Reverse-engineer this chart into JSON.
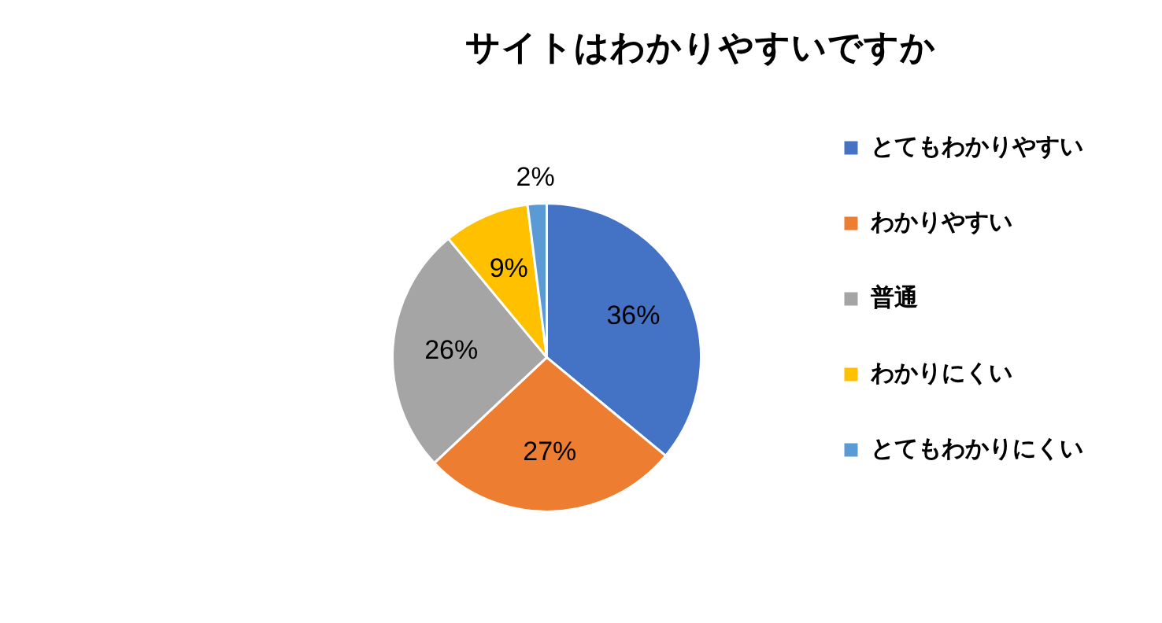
{
  "chart_data": {
    "type": "pie",
    "title": "サイトはわかりやすいですか",
    "categories": [
      "とてもわかりやすい",
      "わかりやすい",
      "普通",
      "わかりにくい",
      "とてもわかりにくい"
    ],
    "values": [
      36,
      27,
      26,
      9,
      2
    ],
    "colors": [
      "#4472c4",
      "#ed7d31",
      "#a5a5a5",
      "#ffc000",
      "#5b9bd5"
    ],
    "value_labels": [
      "36%",
      "27%",
      "26%",
      "9%",
      "2%"
    ],
    "legend": "right"
  }
}
